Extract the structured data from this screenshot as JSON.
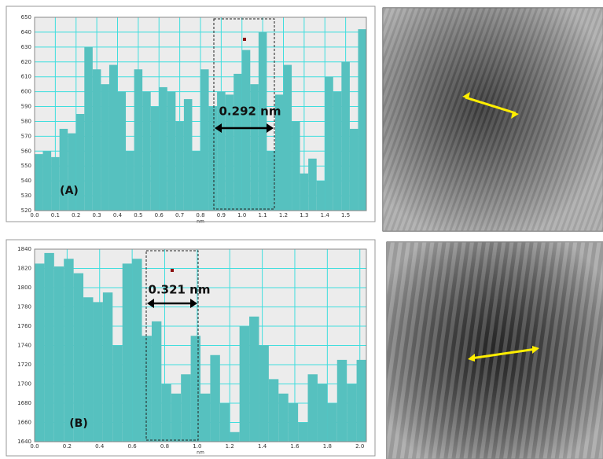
{
  "chart_data": [
    {
      "type": "histogram",
      "xlabel": "nm",
      "annotation": "0.292 nm",
      "label": "(A)",
      "color": "#56c1bf",
      "grid": true,
      "xlim": [
        0,
        1.6
      ],
      "ylim": [
        520,
        650
      ],
      "xticks": [
        {
          "value": 0,
          "label": "0.0"
        },
        0.1,
        0.2,
        0.3,
        0.4,
        0.5,
        0.6,
        0.7,
        0.8,
        0.9,
        {
          "value": 1,
          "label": "1.0"
        },
        1.1,
        1.2,
        1.3,
        1.4,
        1.5
      ],
      "yticks": [
        520,
        530,
        540,
        550,
        560,
        570,
        580,
        590,
        600,
        610,
        620,
        630,
        640,
        650
      ],
      "bins": [
        0,
        0.04,
        0.08,
        0.12,
        0.16,
        0.2,
        0.24,
        0.28,
        0.32,
        0.36,
        0.4,
        0.44,
        0.48,
        0.52,
        0.56,
        0.6,
        0.64,
        0.68,
        0.72,
        0.76,
        0.8,
        0.84,
        0.88,
        0.92,
        0.96,
        1,
        1.04,
        1.08,
        1.12,
        1.16,
        1.2,
        1.24,
        1.28,
        1.32,
        1.36,
        1.4,
        1.44,
        1.48,
        1.52,
        1.56,
        1.6
      ],
      "values": [
        558,
        560,
        556,
        575,
        572,
        585,
        630,
        615,
        605,
        618,
        600,
        560,
        615,
        600,
        590,
        603,
        600,
        580,
        595,
        560,
        615,
        590,
        600,
        598,
        612,
        628,
        605,
        640,
        560,
        598,
        618,
        580,
        545,
        555,
        540,
        610,
        600,
        620,
        575,
        642
      ]
    },
    {
      "type": "histogram",
      "xlabel": "nm",
      "annotation": "0.321 nm",
      "label": "(B)",
      "color": "#56c1bf",
      "grid": true,
      "xlim": [
        0,
        2.04
      ],
      "ylim": [
        1640,
        1840
      ],
      "xticks": [
        {
          "value": 0,
          "label": "0.0"
        },
        0.2,
        0.4,
        0.6,
        0.8,
        {
          "value": 1,
          "label": "1.0"
        },
        1.2,
        1.4,
        1.6,
        1.8,
        {
          "value": 2,
          "label": "2.0"
        }
      ],
      "yticks": [
        1640,
        1660,
        1680,
        1700,
        1720,
        1740,
        1760,
        1780,
        1800,
        1820,
        1840
      ],
      "bins": [
        0,
        0.06,
        0.12,
        0.18,
        0.24,
        0.3,
        0.36,
        0.42,
        0.48,
        0.54,
        0.6,
        0.66,
        0.72,
        0.78,
        0.84,
        0.9,
        0.96,
        1.02,
        1.08,
        1.14,
        1.2,
        1.26,
        1.32,
        1.38,
        1.44,
        1.5,
        1.56,
        1.62,
        1.68,
        1.74,
        1.8,
        1.86,
        1.92,
        1.98,
        2.04
      ],
      "values": [
        1825,
        1836,
        1822,
        1830,
        1815,
        1790,
        1785,
        1795,
        1740,
        1825,
        1830,
        1750,
        1765,
        1700,
        1690,
        1710,
        1750,
        1690,
        1730,
        1680,
        1650,
        1760,
        1770,
        1740,
        1705,
        1690,
        1680,
        1660,
        1710,
        1700,
        1680,
        1725,
        1700,
        1725
      ]
    }
  ]
}
